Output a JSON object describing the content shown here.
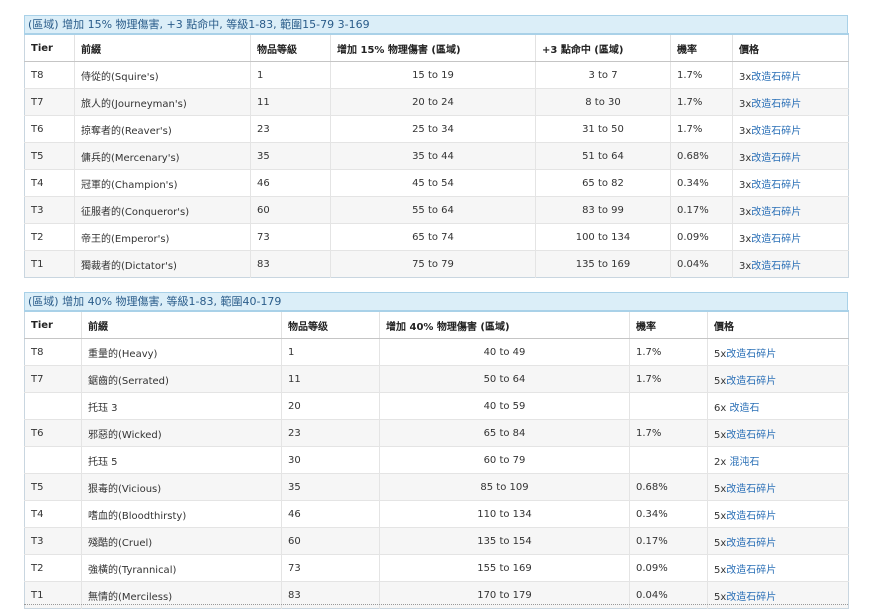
{
  "section1": {
    "title": "(區域) 增加 15% 物理傷害, +3 點命中, 等級1-83, 範圍15-79 3-169",
    "headers": [
      "Tier",
      "前綴",
      "物品等級",
      "增加 15% 物理傷害 (區域)",
      "+3 點命中 (區域)",
      "機率",
      "價格"
    ],
    "rows": [
      {
        "tier": "T8",
        "name": "侍從的(Squire's)",
        "level": "1",
        "dmg": "15 to 19",
        "acc": "3 to 7",
        "chance": "1.7%",
        "price_prefix": "3x",
        "price_link": "改造石碎片"
      },
      {
        "tier": "T7",
        "name": "旅人的(Journeyman's)",
        "level": "11",
        "dmg": "20 to 24",
        "acc": "8 to 30",
        "chance": "1.7%",
        "price_prefix": "3x",
        "price_link": "改造石碎片"
      },
      {
        "tier": "T6",
        "name": "掠奪者的(Reaver's)",
        "level": "23",
        "dmg": "25 to 34",
        "acc": "31 to 50",
        "chance": "1.7%",
        "price_prefix": "3x",
        "price_link": "改造石碎片"
      },
      {
        "tier": "T5",
        "name": "傭兵的(Mercenary's)",
        "level": "35",
        "dmg": "35 to 44",
        "acc": "51 to 64",
        "chance": "0.68%",
        "price_prefix": "3x",
        "price_link": "改造石碎片"
      },
      {
        "tier": "T4",
        "name": "冠軍的(Champion's)",
        "level": "46",
        "dmg": "45 to 54",
        "acc": "65 to 82",
        "chance": "0.34%",
        "price_prefix": "3x",
        "price_link": "改造石碎片"
      },
      {
        "tier": "T3",
        "name": "征服者的(Conqueror's)",
        "level": "60",
        "dmg": "55 to 64",
        "acc": "83 to 99",
        "chance": "0.17%",
        "price_prefix": "3x",
        "price_link": "改造石碎片"
      },
      {
        "tier": "T2",
        "name": "帝王的(Emperor's)",
        "level": "73",
        "dmg": "65 to 74",
        "acc": "100 to 134",
        "chance": "0.09%",
        "price_prefix": "3x",
        "price_link": "改造石碎片"
      },
      {
        "tier": "T1",
        "name": "獨裁者的(Dictator's)",
        "level": "83",
        "dmg": "75 to 79",
        "acc": "135 to 169",
        "chance": "0.04%",
        "price_prefix": "3x",
        "price_link": "改造石碎片"
      }
    ]
  },
  "section2": {
    "title": "(區域) 增加 40% 物理傷害, 等級1-83, 範圍40-179",
    "headers": [
      "Tier",
      "前綴",
      "物品等级",
      "增加 40% 物理傷害 (區域)",
      "機率",
      "價格"
    ],
    "rows": [
      {
        "tier": "T8",
        "name": "重量的(Heavy)",
        "level": "1",
        "dmg": "40 to 49",
        "chance": "1.7%",
        "price_prefix": "5x",
        "price_link": "改造石碎片"
      },
      {
        "tier": "T7",
        "name": "鋸齒的(Serrated)",
        "level": "11",
        "dmg": "50 to 64",
        "chance": "1.7%",
        "price_prefix": "5x",
        "price_link": "改造石碎片"
      },
      {
        "tier": "",
        "name": "托珏 3",
        "level": "20",
        "dmg": "40 to 59",
        "chance": "",
        "price_prefix": "6x ",
        "price_link": "改造石"
      },
      {
        "tier": "T6",
        "name": "邪惡的(Wicked)",
        "level": "23",
        "dmg": "65 to 84",
        "chance": "1.7%",
        "price_prefix": "5x",
        "price_link": "改造石碎片"
      },
      {
        "tier": "",
        "name": "托珏 5",
        "level": "30",
        "dmg": "60 to 79",
        "chance": "",
        "price_prefix": "2x ",
        "price_link": "混沌石"
      },
      {
        "tier": "T5",
        "name": "狠毒的(Vicious)",
        "level": "35",
        "dmg": "85 to 109",
        "chance": "0.68%",
        "price_prefix": "5x",
        "price_link": "改造石碎片"
      },
      {
        "tier": "T4",
        "name": "嗜血的(Bloodthirsty)",
        "level": "46",
        "dmg": "110 to 134",
        "chance": "0.34%",
        "price_prefix": "5x",
        "price_link": "改造石碎片"
      },
      {
        "tier": "T3",
        "name": "殘酷的(Cruel)",
        "level": "60",
        "dmg": "135 to 154",
        "chance": "0.17%",
        "price_prefix": "5x",
        "price_link": "改造石碎片"
      },
      {
        "tier": "T2",
        "name": "強橫的(Tyrannical)",
        "level": "73",
        "dmg": "155 to 169",
        "chance": "0.09%",
        "price_prefix": "5x",
        "price_link": "改造石碎片"
      },
      {
        "tier": "T1",
        "name": "無情的(Merciless)",
        "level": "83",
        "dmg": "170 to 179",
        "chance": "0.04%",
        "price_prefix": "5x",
        "price_link": "改造石碎片"
      }
    ]
  },
  "colors": {
    "header_bg": "#dbeef8",
    "header_text": "#2a5c8a",
    "link": "#2a6fb6",
    "alt_row": "#f6f6f6"
  }
}
